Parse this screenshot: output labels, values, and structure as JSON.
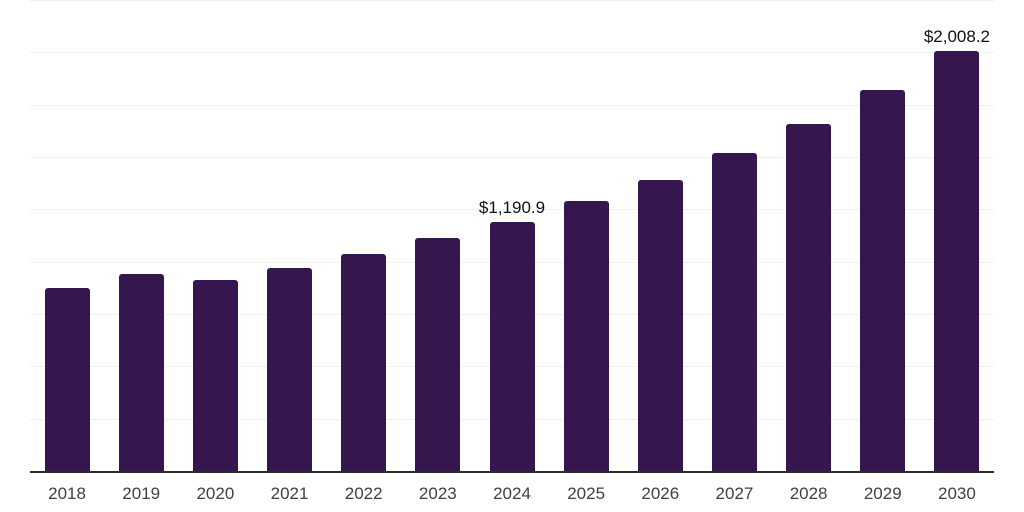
{
  "chart_data": {
    "type": "bar",
    "title": "",
    "xlabel": "",
    "ylabel": "",
    "categories": [
      "2018",
      "2019",
      "2020",
      "2021",
      "2022",
      "2023",
      "2024",
      "2025",
      "2026",
      "2027",
      "2028",
      "2029",
      "2030"
    ],
    "values": [
      873,
      939,
      911,
      968,
      1035,
      1111,
      1190.9,
      1288,
      1388,
      1517,
      1660,
      1822,
      2008.2
    ],
    "data_labels": [
      null,
      null,
      null,
      null,
      null,
      null,
      "$1,190.9",
      null,
      null,
      null,
      null,
      null,
      "$2,008.2"
    ],
    "ylim": [
      0,
      2250
    ],
    "grid": true,
    "grid_step": 250,
    "legend": false,
    "colors": {
      "bar": "#36164e",
      "gridline": "#f0f0f0",
      "axis_line": "#2b2b2b",
      "tick_label": "#404040",
      "data_label": "#111111",
      "background": "#ffffff"
    }
  }
}
